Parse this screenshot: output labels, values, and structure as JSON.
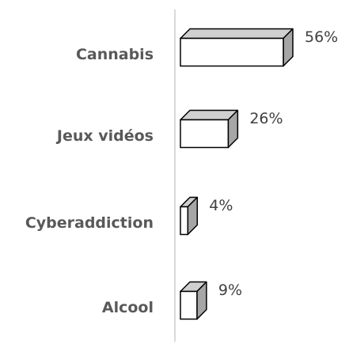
{
  "chart_data": {
    "type": "bar",
    "orientation": "horizontal",
    "style": "3d",
    "categories": [
      "Cannabis",
      "Jeux vidéos",
      "Cyberaddiction",
      "Alcool"
    ],
    "values": [
      56,
      26,
      4,
      9
    ],
    "value_labels": [
      "56%",
      "26%",
      "4%",
      "9%"
    ],
    "unit": "%",
    "xlim": [
      0,
      56
    ],
    "grid": false,
    "legend": "none",
    "colors": {
      "bar_front": "#ffffff",
      "bar_side": "#a6a6a6",
      "bar_top": "#d0d0d0",
      "bar_stroke": "#000000",
      "axis": "#d9d9d9",
      "category_text": "#595959",
      "value_text": "#404040"
    }
  }
}
